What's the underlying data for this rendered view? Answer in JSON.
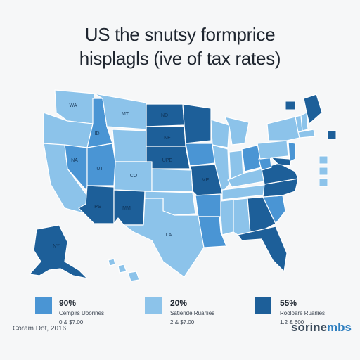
{
  "title": {
    "line1": "US the snutsy formprice",
    "line2": "hisplagls (ive of tax rates)"
  },
  "colors": {
    "light": "#8cc3ea",
    "medium": "#4a95d4",
    "dark": "#1d5f99",
    "darkest": "#154a7a",
    "background": "#f6f7f8"
  },
  "state_labels": {
    "wa": "WA",
    "id": "ID",
    "mt": "MT",
    "nd": "ND",
    "ne": "NE",
    "ks": "UPE",
    "nv": "NA",
    "ut": "UT",
    "co": "CO",
    "az": "IPS",
    "nm": "MM",
    "tx": "LA",
    "mo": "ME",
    "ak": "NY"
  },
  "legend": [
    {
      "pct": "90%",
      "name": "Cempirs Uoorines",
      "range": "0 & $7.00",
      "color": "#4a95d4"
    },
    {
      "pct": "20%",
      "name": "Satieride Ruarlies",
      "range": "2 & $7.00",
      "color": "#8cc3ea"
    },
    {
      "pct": "55%",
      "name": "Rooloare Ruarlies",
      "range": "1.2 & 600",
      "color": "#1d5f99"
    }
  ],
  "footer": {
    "note": "Coram Dot, 2016",
    "brand_main": "sorine",
    "brand_accent": "mbs"
  }
}
